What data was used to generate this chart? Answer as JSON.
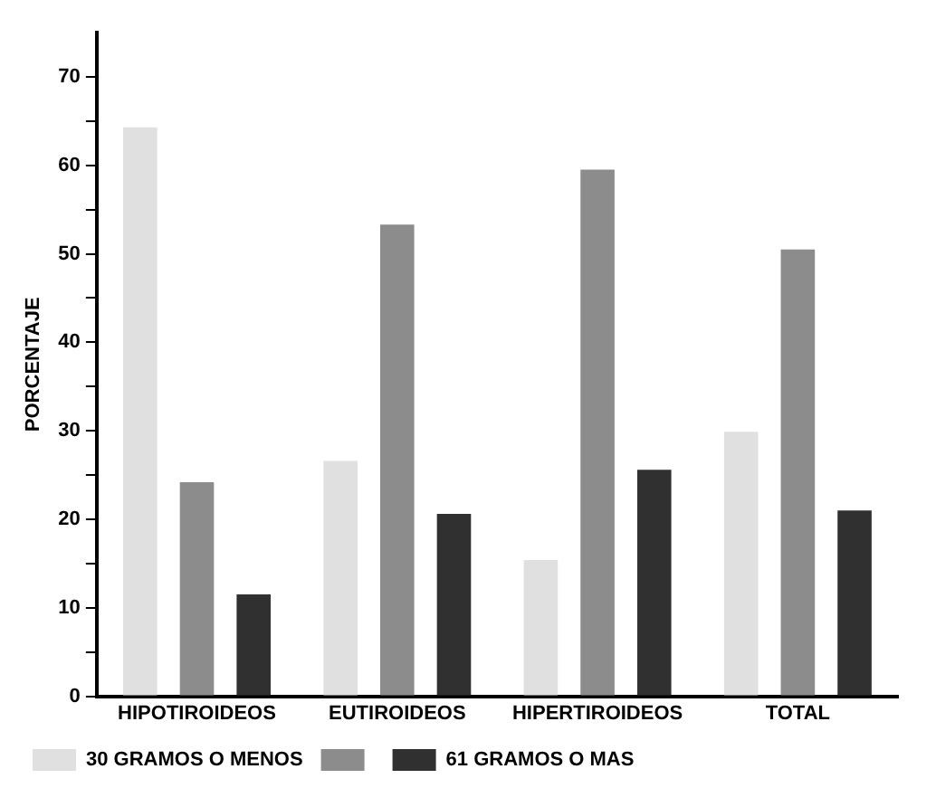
{
  "chart_data": {
    "type": "bar",
    "ylabel": "PORCENTAJE",
    "categories": [
      "HIPOTIROIDEOS",
      "EUTIROIDEOS",
      "HIPERTIROIDEOS",
      "TOTAL"
    ],
    "series": [
      {
        "name": "30 GRAMOS O MENOS",
        "color": "#e0e0e0",
        "values": [
          64.3,
          26.6,
          15.4,
          29.9
        ]
      },
      {
        "color": "#8c8c8c",
        "values": [
          24.2,
          53.3,
          59.5,
          50.5
        ]
      },
      {
        "name": "61 GRAMOS O MAS",
        "color": "#303030",
        "values": [
          11.5,
          20.6,
          25.6,
          21.0
        ]
      }
    ],
    "ylim": [
      0,
      75
    ],
    "yticks": [
      0,
      {
        "value": 5,
        "label": null
      },
      10,
      {
        "value": 15,
        "label": null
      },
      20,
      {
        "value": 25,
        "label": null
      },
      30,
      {
        "value": 35,
        "label": null
      },
      40,
      {
        "value": 45,
        "label": null
      },
      50,
      {
        "value": 55,
        "label": null
      },
      60,
      {
        "value": 65,
        "label": null
      },
      70
    ],
    "grid": false,
    "legend": "bottom"
  }
}
